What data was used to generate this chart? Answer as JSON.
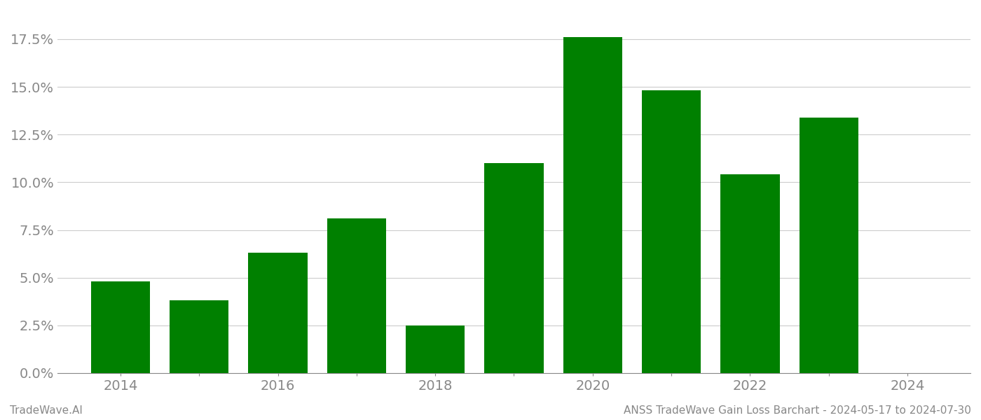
{
  "years": [
    2014,
    2015,
    2016,
    2017,
    2018,
    2019,
    2020,
    2021,
    2022,
    2023
  ],
  "values": [
    0.048,
    0.038,
    0.063,
    0.081,
    0.025,
    0.11,
    0.176,
    0.148,
    0.104,
    0.134
  ],
  "bar_color": "#008000",
  "background_color": "#ffffff",
  "grid_color": "#cccccc",
  "footer_left": "TradeWave.AI",
  "footer_right": "ANSS TradeWave Gain Loss Barchart - 2024-05-17 to 2024-07-30",
  "ylim_min": 0.0,
  "ylim_max": 0.19,
  "yticks": [
    0.0,
    0.025,
    0.05,
    0.075,
    0.1,
    0.125,
    0.15,
    0.175
  ],
  "xlim_min": 2013.2,
  "xlim_max": 2024.8,
  "xtick_labels_at": [
    2014,
    2016,
    2018,
    2020,
    2022,
    2024
  ],
  "all_xticks": [
    2014,
    2015,
    2016,
    2017,
    2018,
    2019,
    2020,
    2021,
    2022,
    2023,
    2024
  ],
  "tick_label_color": "#888888",
  "footer_color": "#888888",
  "tick_fontsize": 14,
  "footer_fontsize": 11,
  "bar_width": 0.75
}
